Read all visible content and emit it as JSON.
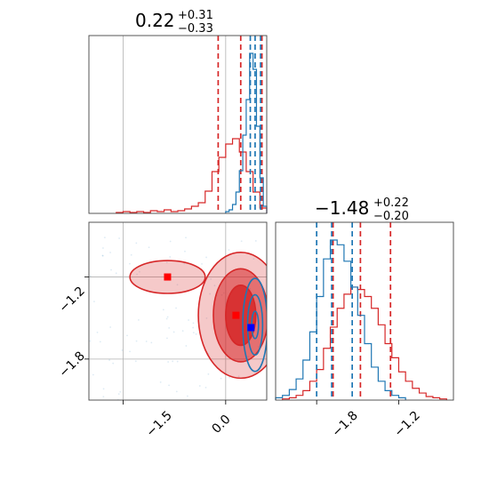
{
  "chart_data": {
    "type": "corner",
    "colors": {
      "red": "#d62728",
      "blue": "#1f77b4",
      "marker_red": "#ff0000",
      "marker_blue": "#0000ff"
    },
    "panels": [
      {
        "id": "marginal_x",
        "type": "histogram",
        "title": {
          "value": "0.22",
          "upper": "+0.31",
          "lower": "−0.33"
        },
        "xlim": [
          -2.0,
          0.6
        ],
        "grid_x": [
          -1.5,
          0.0
        ],
        "series": [
          {
            "color": "red",
            "bin_edges": [
              -1.6,
              -1.5,
              -1.4,
              -1.3,
              -1.2,
              -1.1,
              -1.0,
              -0.9,
              -0.8,
              -0.7,
              -0.6,
              -0.5,
              -0.4,
              -0.3,
              -0.2,
              -0.1,
              0.0,
              0.1,
              0.2,
              0.3,
              0.4,
              0.5,
              0.6
            ],
            "counts": [
              1,
              2,
              1,
              2,
              1,
              3,
              2,
              4,
              2,
              3,
              5,
              8,
              12,
              25,
              47,
              63,
              78,
              84,
              69,
              47,
              24,
              6
            ],
            "quantiles": [
              -0.11,
              0.22,
              0.53
            ]
          },
          {
            "color": "blue",
            "bin_edges": [
              0.0,
              0.05,
              0.1,
              0.15,
              0.2,
              0.25,
              0.3,
              0.35,
              0.4,
              0.45,
              0.5,
              0.55,
              0.6
            ],
            "counts": [
              2,
              4,
              10,
              24,
              48,
              88,
              128,
              180,
              162,
              98,
              40,
              8
            ],
            "quantiles": [
              0.36,
              0.43,
              0.51
            ]
          }
        ]
      },
      {
        "id": "joint",
        "type": "contour",
        "xlim": [
          -2.0,
          0.6
        ],
        "ylim": [
          -2.1,
          -0.8
        ],
        "grid_x": [
          -1.5,
          0.0
        ],
        "grid_y": [
          -1.2,
          -1.8
        ],
        "x_ticks": [
          "−1.5",
          "0.0"
        ],
        "y_ticks": [
          "−1.2",
          "−1.8"
        ],
        "series": [
          {
            "color": "red",
            "center": [
              0.22,
              -1.48
            ],
            "levels": [
              {
                "rx": 0.62,
                "ry": 0.46,
                "alpha": 0.25
              },
              {
                "rx": 0.4,
                "ry": 0.34,
                "alpha": 0.55
              },
              {
                "rx": 0.22,
                "ry": 0.22,
                "alpha": 0.85
              }
            ],
            "blob": {
              "center": [
                -0.85,
                -1.2
              ],
              "rx": 0.55,
              "ry": 0.12
            },
            "markers": [
              [
                -0.85,
                -1.2
              ],
              [
                0.15,
                -1.48
              ]
            ]
          },
          {
            "color": "blue",
            "center": [
              0.43,
              -1.55
            ],
            "levels": [
              {
                "rx": 0.18,
                "ry": 0.34
              },
              {
                "rx": 0.11,
                "ry": 0.22
              },
              {
                "rx": 0.05,
                "ry": 0.1
              }
            ],
            "markers": [
              [
                0.37,
                -1.57
              ]
            ]
          }
        ]
      },
      {
        "id": "marginal_y",
        "type": "histogram",
        "title": {
          "value": "−1.48",
          "upper": "+0.22",
          "lower": "−0.20"
        },
        "xlim": [
          -2.1,
          -0.8
        ],
        "grid_x": [],
        "x_ticks": [
          "−1.8",
          "−1.2"
        ],
        "x_tick_values": [
          -1.8,
          -1.2
        ],
        "series": [
          {
            "color": "red",
            "bin_edges": [
              -2.05,
              -2.0,
              -1.95,
              -1.9,
              -1.85,
              -1.8,
              -1.75,
              -1.7,
              -1.65,
              -1.6,
              -1.55,
              -1.5,
              -1.45,
              -1.4,
              -1.35,
              -1.3,
              -1.25,
              -1.2,
              -1.15,
              -1.1,
              -1.05,
              -1.0,
              -0.95,
              -0.9,
              -0.85
            ],
            "counts": [
              1,
              2,
              4,
              8,
              16,
              26,
              44,
              62,
              78,
              90,
              96,
              94,
              88,
              78,
              64,
              48,
              36,
              24,
              16,
              10,
              6,
              3,
              2,
              1
            ],
            "quantiles": [
              -1.68,
              -1.48,
              -1.26
            ]
          },
          {
            "color": "blue",
            "bin_edges": [
              -2.1,
              -2.05,
              -2.0,
              -1.95,
              -1.9,
              -1.85,
              -1.8,
              -1.75,
              -1.7,
              -1.65,
              -1.6,
              -1.55,
              -1.5,
              -1.45,
              -1.4,
              -1.35,
              -1.3,
              -1.25,
              -1.2,
              -1.15
            ],
            "counts": [
              2,
              4,
              9,
              18,
              34,
              58,
              88,
              120,
              136,
              132,
              118,
              96,
              72,
              48,
              28,
              16,
              8,
              4,
              2
            ],
            "quantiles": [
              -1.8,
              -1.69,
              -1.54
            ]
          }
        ]
      }
    ]
  }
}
